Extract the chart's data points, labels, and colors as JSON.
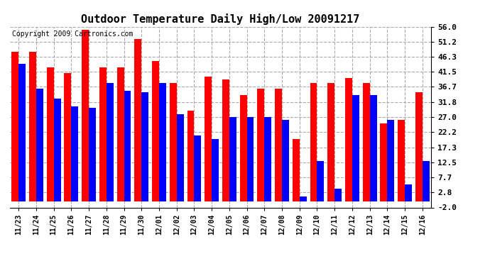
{
  "title": "Outdoor Temperature Daily High/Low 20091217",
  "copyright": "Copyright 2009 Cartronics.com",
  "dates": [
    "11/23",
    "11/24",
    "11/25",
    "11/26",
    "11/27",
    "11/28",
    "11/29",
    "11/30",
    "12/01",
    "12/02",
    "12/03",
    "12/04",
    "12/05",
    "12/06",
    "12/07",
    "12/08",
    "12/09",
    "12/10",
    "12/11",
    "12/12",
    "12/13",
    "12/14",
    "12/15",
    "12/16"
  ],
  "highs": [
    48.0,
    48.0,
    43.0,
    41.0,
    55.0,
    43.0,
    43.0,
    52.0,
    45.0,
    38.0,
    29.0,
    40.0,
    39.0,
    34.0,
    36.0,
    36.0,
    20.0,
    38.0,
    38.0,
    39.5,
    38.0,
    25.0,
    26.0,
    35.0
  ],
  "lows": [
    44.0,
    36.0,
    33.0,
    30.5,
    30.0,
    38.0,
    35.5,
    35.0,
    38.0,
    28.0,
    21.0,
    20.0,
    27.0,
    27.0,
    27.0,
    26.0,
    1.5,
    13.0,
    4.0,
    34.0,
    34.0,
    26.0,
    5.5,
    13.0
  ],
  "bar_width": 0.4,
  "ylim": [
    -2.0,
    56.0
  ],
  "yticks": [
    56.0,
    51.2,
    46.3,
    41.5,
    36.7,
    31.8,
    27.0,
    22.2,
    17.3,
    12.5,
    7.7,
    2.8,
    -2.0
  ],
  "high_color": "#FF0000",
  "low_color": "#0000FF",
  "background_color": "#FFFFFF",
  "grid_color": "#AAAAAA",
  "title_fontsize": 11,
  "copyright_fontsize": 7,
  "figwidth": 6.9,
  "figheight": 3.75,
  "dpi": 100
}
